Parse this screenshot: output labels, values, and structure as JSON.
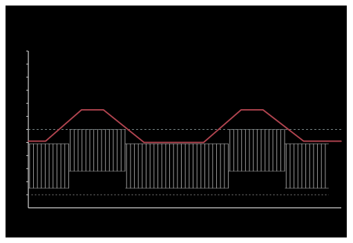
{
  "chart_data": {
    "type": "line",
    "title": "",
    "xlabel": "",
    "ylabel": "",
    "xlim": [
      0,
      100
    ],
    "ylim": [
      0,
      12
    ],
    "y_ticks": [
      1,
      2,
      3,
      4,
      5,
      6,
      7,
      8,
      9,
      10,
      11,
      12
    ],
    "grid": false,
    "legend": "none",
    "series": [
      {
        "kind": "trapezoid",
        "color": "#b0444f",
        "x": [
          0,
          5.5,
          17,
          24,
          37,
          56,
          68,
          75,
          88,
          100
        ],
        "values": [
          5.1,
          5.1,
          7.5,
          7.5,
          5.0,
          5.0,
          7.5,
          7.5,
          5.1,
          5.1
        ]
      },
      {
        "kind": "envelope-dashed",
        "color": "#7f8c8d",
        "x": [
          0,
          100
        ],
        "values": [
          6.0,
          6.0
        ]
      },
      {
        "kind": "switching-pulses",
        "color": "#b8b8b8",
        "segments": [
          {
            "x_start": 0,
            "x_end": 13,
            "low": 1.5,
            "high": 4.9
          },
          {
            "x_start": 13,
            "x_end": 31,
            "low": 2.8,
            "high": 6.0
          },
          {
            "x_start": 31,
            "x_end": 64,
            "low": 1.5,
            "high": 4.9
          },
          {
            "x_start": 64,
            "x_end": 82,
            "low": 2.8,
            "high": 6.0
          },
          {
            "x_start": 82,
            "x_end": 96,
            "low": 1.5,
            "high": 4.9
          }
        ],
        "pulse_spacing": 1.25
      }
    ],
    "colors": {
      "background": "#000000",
      "axis": "#d9d9d9",
      "dotted_baseline": "#8a8a8a"
    },
    "baseline_dotted_y": 1.0
  }
}
